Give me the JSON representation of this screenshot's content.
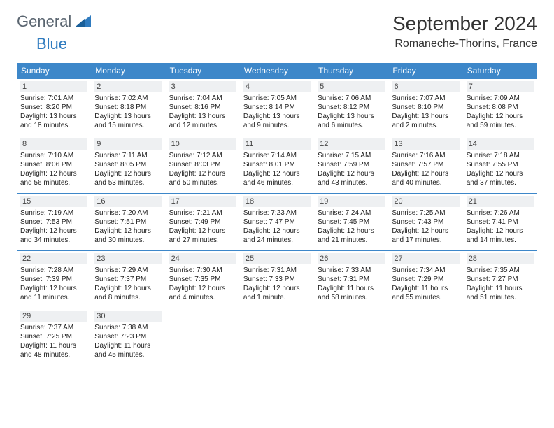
{
  "brand": {
    "part1": "General",
    "part2": "Blue"
  },
  "title": "September 2024",
  "location": "Romaneche-Thorins, France",
  "colors": {
    "header_bg": "#3d87c9",
    "header_text": "#ffffff",
    "row_border": "#3d87c9",
    "daynum_bg": "#eef0f2",
    "logo_gray": "#5a6570",
    "logo_blue": "#2f7bbf"
  },
  "weekday_labels": [
    "Sunday",
    "Monday",
    "Tuesday",
    "Wednesday",
    "Thursday",
    "Friday",
    "Saturday"
  ],
  "weeks": [
    [
      {
        "d": "1",
        "sr": "7:01 AM",
        "ss": "8:20 PM",
        "dl": "13 hours and 18 minutes."
      },
      {
        "d": "2",
        "sr": "7:02 AM",
        "ss": "8:18 PM",
        "dl": "13 hours and 15 minutes."
      },
      {
        "d": "3",
        "sr": "7:04 AM",
        "ss": "8:16 PM",
        "dl": "13 hours and 12 minutes."
      },
      {
        "d": "4",
        "sr": "7:05 AM",
        "ss": "8:14 PM",
        "dl": "13 hours and 9 minutes."
      },
      {
        "d": "5",
        "sr": "7:06 AM",
        "ss": "8:12 PM",
        "dl": "13 hours and 6 minutes."
      },
      {
        "d": "6",
        "sr": "7:07 AM",
        "ss": "8:10 PM",
        "dl": "13 hours and 2 minutes."
      },
      {
        "d": "7",
        "sr": "7:09 AM",
        "ss": "8:08 PM",
        "dl": "12 hours and 59 minutes."
      }
    ],
    [
      {
        "d": "8",
        "sr": "7:10 AM",
        "ss": "8:06 PM",
        "dl": "12 hours and 56 minutes."
      },
      {
        "d": "9",
        "sr": "7:11 AM",
        "ss": "8:05 PM",
        "dl": "12 hours and 53 minutes."
      },
      {
        "d": "10",
        "sr": "7:12 AM",
        "ss": "8:03 PM",
        "dl": "12 hours and 50 minutes."
      },
      {
        "d": "11",
        "sr": "7:14 AM",
        "ss": "8:01 PM",
        "dl": "12 hours and 46 minutes."
      },
      {
        "d": "12",
        "sr": "7:15 AM",
        "ss": "7:59 PM",
        "dl": "12 hours and 43 minutes."
      },
      {
        "d": "13",
        "sr": "7:16 AM",
        "ss": "7:57 PM",
        "dl": "12 hours and 40 minutes."
      },
      {
        "d": "14",
        "sr": "7:18 AM",
        "ss": "7:55 PM",
        "dl": "12 hours and 37 minutes."
      }
    ],
    [
      {
        "d": "15",
        "sr": "7:19 AM",
        "ss": "7:53 PM",
        "dl": "12 hours and 34 minutes."
      },
      {
        "d": "16",
        "sr": "7:20 AM",
        "ss": "7:51 PM",
        "dl": "12 hours and 30 minutes."
      },
      {
        "d": "17",
        "sr": "7:21 AM",
        "ss": "7:49 PM",
        "dl": "12 hours and 27 minutes."
      },
      {
        "d": "18",
        "sr": "7:23 AM",
        "ss": "7:47 PM",
        "dl": "12 hours and 24 minutes."
      },
      {
        "d": "19",
        "sr": "7:24 AM",
        "ss": "7:45 PM",
        "dl": "12 hours and 21 minutes."
      },
      {
        "d": "20",
        "sr": "7:25 AM",
        "ss": "7:43 PM",
        "dl": "12 hours and 17 minutes."
      },
      {
        "d": "21",
        "sr": "7:26 AM",
        "ss": "7:41 PM",
        "dl": "12 hours and 14 minutes."
      }
    ],
    [
      {
        "d": "22",
        "sr": "7:28 AM",
        "ss": "7:39 PM",
        "dl": "12 hours and 11 minutes."
      },
      {
        "d": "23",
        "sr": "7:29 AM",
        "ss": "7:37 PM",
        "dl": "12 hours and 8 minutes."
      },
      {
        "d": "24",
        "sr": "7:30 AM",
        "ss": "7:35 PM",
        "dl": "12 hours and 4 minutes."
      },
      {
        "d": "25",
        "sr": "7:31 AM",
        "ss": "7:33 PM",
        "dl": "12 hours and 1 minute."
      },
      {
        "d": "26",
        "sr": "7:33 AM",
        "ss": "7:31 PM",
        "dl": "11 hours and 58 minutes."
      },
      {
        "d": "27",
        "sr": "7:34 AM",
        "ss": "7:29 PM",
        "dl": "11 hours and 55 minutes."
      },
      {
        "d": "28",
        "sr": "7:35 AM",
        "ss": "7:27 PM",
        "dl": "11 hours and 51 minutes."
      }
    ],
    [
      {
        "d": "29",
        "sr": "7:37 AM",
        "ss": "7:25 PM",
        "dl": "11 hours and 48 minutes."
      },
      {
        "d": "30",
        "sr": "7:38 AM",
        "ss": "7:23 PM",
        "dl": "11 hours and 45 minutes."
      },
      null,
      null,
      null,
      null,
      null
    ]
  ],
  "labels": {
    "sunrise": "Sunrise:",
    "sunset": "Sunset:",
    "daylight": "Daylight:"
  }
}
